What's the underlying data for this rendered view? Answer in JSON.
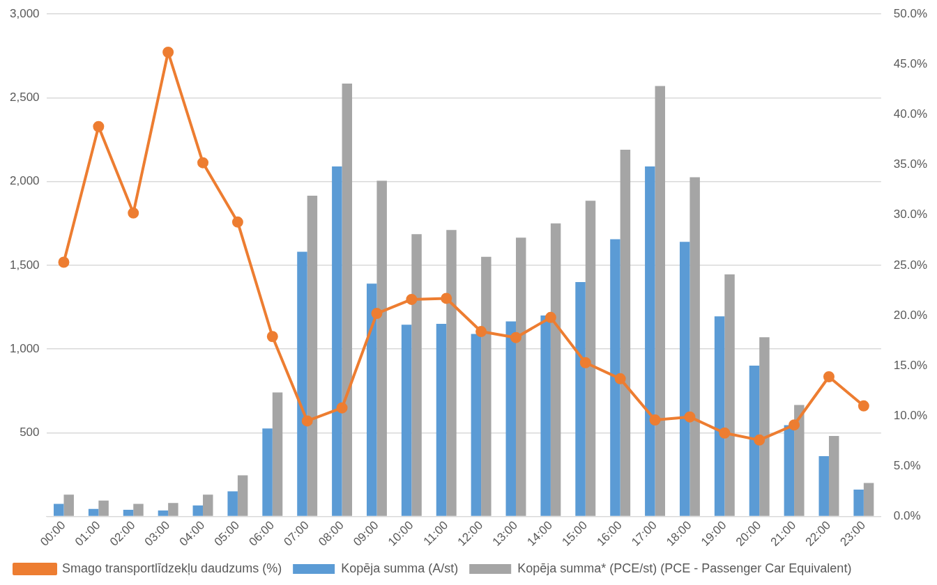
{
  "chart_data": {
    "type": "bar",
    "categories": [
      "00:00",
      "01:00",
      "02:00",
      "03:00",
      "04:00",
      "05:00",
      "06:00",
      "07:00",
      "08:00",
      "09:00",
      "10:00",
      "11:00",
      "12:00",
      "13:00",
      "14:00",
      "15:00",
      "16:00",
      "17:00",
      "18:00",
      "19:00",
      "20:00",
      "21:00",
      "22:00",
      "23:00"
    ],
    "series": [
      {
        "name": "Kopēja summa (A/st)",
        "color": "#5b9bd5",
        "values": [
          75,
          45,
          40,
          35,
          65,
          150,
          525,
          1580,
          2090,
          1390,
          1145,
          1150,
          1090,
          1165,
          1200,
          1400,
          1655,
          2090,
          1640,
          1195,
          900,
          545,
          360,
          160
        ]
      },
      {
        "name": "Kopēja summa* (PCE/st) (PCE - Passenger Car Equivalent)",
        "color": "#a5a5a5",
        "values": [
          130,
          95,
          75,
          80,
          130,
          245,
          740,
          1915,
          2585,
          2005,
          1685,
          1710,
          1550,
          1665,
          1750,
          1885,
          2190,
          2570,
          2025,
          1445,
          1070,
          665,
          480,
          200
        ]
      },
      {
        "name": "Smago transportlīdzekļu daudzums (%)",
        "type": "line",
        "axis": "y2",
        "color": "#ed7d31",
        "marker": "circle",
        "values": [
          25.3,
          38.8,
          30.2,
          46.2,
          35.2,
          29.3,
          17.9,
          9.5,
          10.8,
          20.2,
          21.6,
          21.7,
          18.4,
          17.8,
          19.8,
          15.3,
          13.7,
          9.6,
          9.9,
          8.3,
          7.6,
          9.1,
          13.9,
          11.0
        ]
      }
    ],
    "ylim": [
      0,
      3000
    ],
    "yticks": [
      {
        "value": 0,
        "label": null
      },
      {
        "value": 500,
        "label": "500"
      },
      {
        "value": 1000,
        "label": "1,000"
      },
      {
        "value": 1500,
        "label": "1,500"
      },
      {
        "value": 2000,
        "label": "2,000"
      },
      {
        "value": 2500,
        "label": "2,500"
      },
      {
        "value": 3000,
        "label": "3,000"
      }
    ],
    "y2lim": [
      0,
      50
    ],
    "y2ticks": [
      {
        "value": 0,
        "label": "0.0%"
      },
      {
        "value": 5,
        "label": "5.0%"
      },
      {
        "value": 10,
        "label": "10.0%"
      },
      {
        "value": 15,
        "label": "15.0%"
      },
      {
        "value": 20,
        "label": "20.0%"
      },
      {
        "value": 25,
        "label": "25.0%"
      },
      {
        "value": 30,
        "label": "30.0%"
      },
      {
        "value": 35,
        "label": "35.0%"
      },
      {
        "value": 40,
        "label": "40.0%"
      },
      {
        "value": 45,
        "label": "45.0%"
      },
      {
        "value": 50,
        "label": "50.0%"
      }
    ],
    "grid": "y",
    "legend": "bottom"
  }
}
